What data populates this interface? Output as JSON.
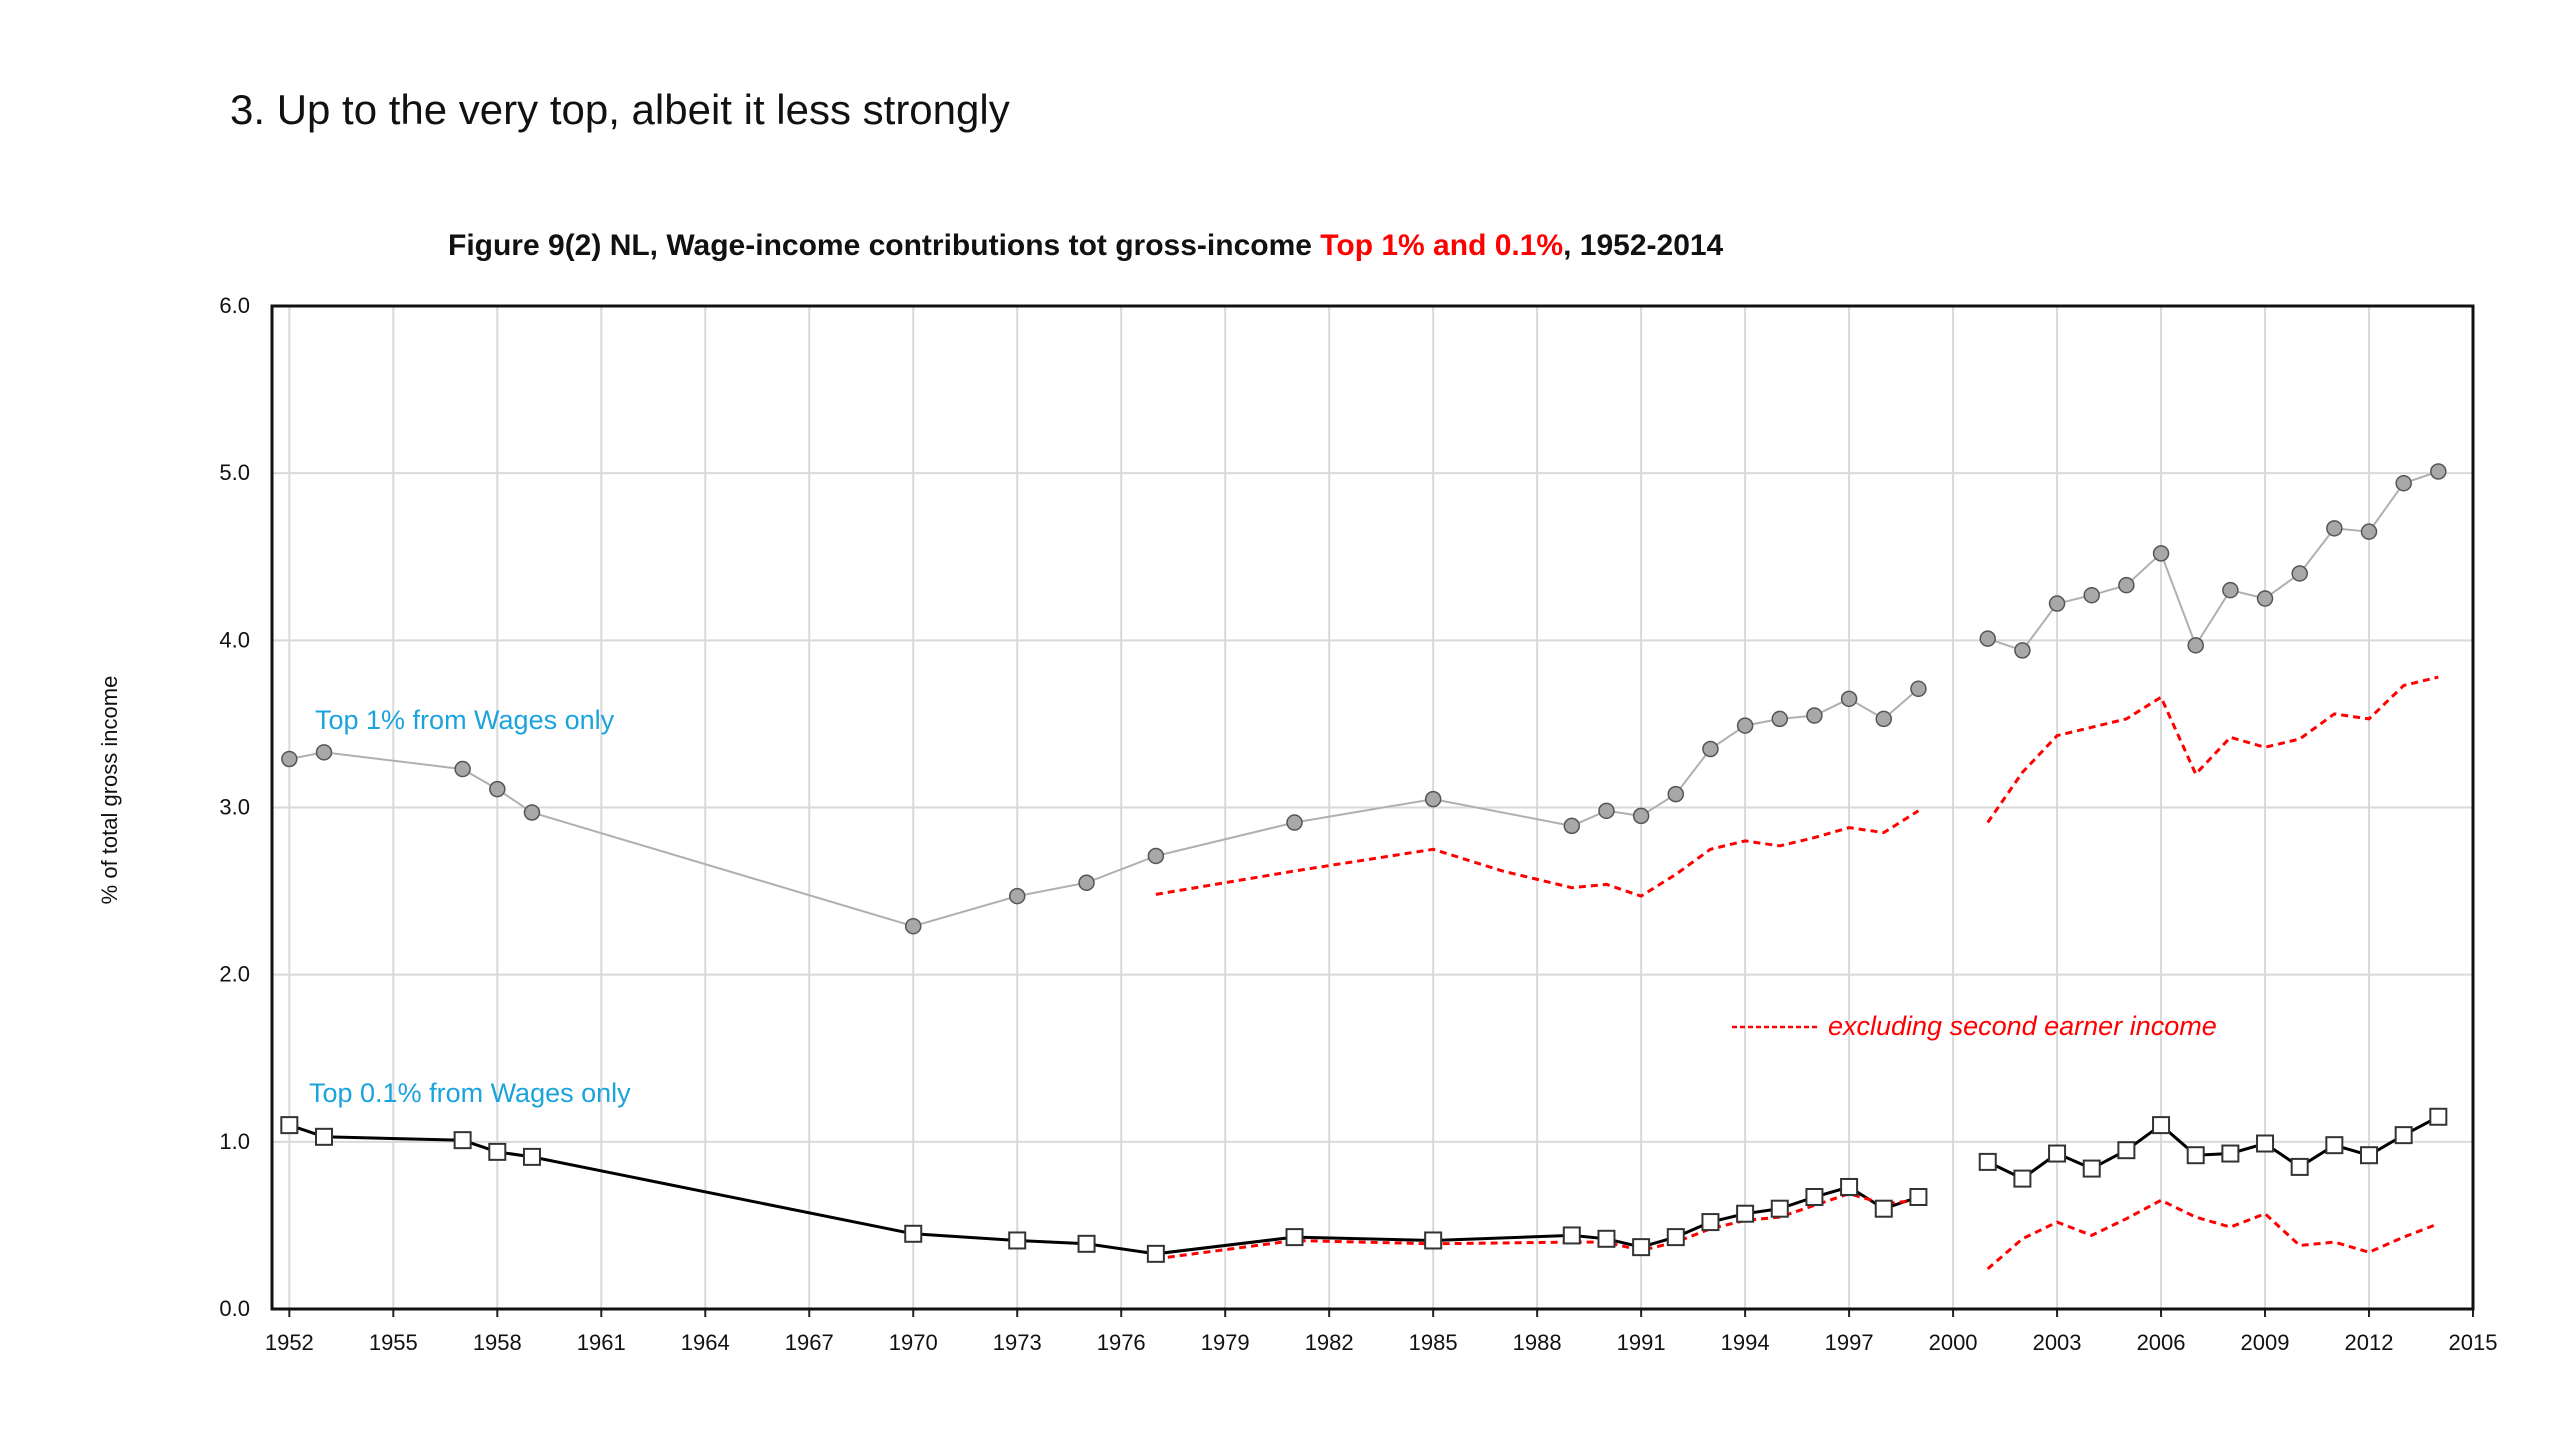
{
  "heading": "3. Up to the very top, albeit it less strongly",
  "figure_title": {
    "prefix": "Figure 9(2)  NL, Wage-income contributions tot gross-income ",
    "highlight": "Top 1% and 0.1%",
    "suffix": ", 1952-2014"
  },
  "colors": {
    "top1_line": "#b0b0b0",
    "top1_marker": "#a8a8a8",
    "top01_line": "#000000",
    "excluding_line": "#ff0000",
    "label_blue": "#1aa3dd",
    "grid": "#d9d9d9"
  },
  "chart_data": {
    "type": "line",
    "ylabel": "% of total gross income",
    "xlabel": "",
    "ylim": [
      0.0,
      6.0
    ],
    "xlim": [
      1951.5,
      2015
    ],
    "yticks": [
      "0.0",
      "1.0",
      "2.0",
      "3.0",
      "4.0",
      "5.0",
      "6.0"
    ],
    "xticks": [
      "1952",
      "1955",
      "1958",
      "1961",
      "1964",
      "1967",
      "1970",
      "1973",
      "1976",
      "1979",
      "1982",
      "1985",
      "1988",
      "1991",
      "1994",
      "1997",
      "2000",
      "2003",
      "2006",
      "2009",
      "2012",
      "2015"
    ],
    "grid": true,
    "annotations": {
      "top1": "Top 1% from Wages only",
      "top01": "Top 0.1% from Wages only",
      "legend_excluding": "excluding second earner income"
    },
    "series": [
      {
        "name": "Top 1% from Wages only",
        "marker": "circle",
        "segments": [
          [
            [
              1952,
              3.29
            ],
            [
              1953,
              3.33
            ],
            [
              1957,
              3.23
            ],
            [
              1958,
              3.11
            ],
            [
              1959,
              2.97
            ],
            [
              1970,
              2.29
            ],
            [
              1973,
              2.47
            ],
            [
              1975,
              2.55
            ],
            [
              1977,
              2.71
            ],
            [
              1981,
              2.91
            ],
            [
              1985,
              3.05
            ],
            [
              1989,
              2.89
            ],
            [
              1990,
              2.98
            ],
            [
              1991,
              2.95
            ],
            [
              1992,
              3.08
            ],
            [
              1993,
              3.35
            ],
            [
              1994,
              3.49
            ],
            [
              1995,
              3.53
            ],
            [
              1996,
              3.55
            ],
            [
              1997,
              3.65
            ],
            [
              1998,
              3.53
            ],
            [
              1999,
              3.71
            ]
          ],
          [
            [
              2001,
              4.01
            ],
            [
              2002,
              3.94
            ],
            [
              2003,
              4.22
            ],
            [
              2004,
              4.27
            ],
            [
              2005,
              4.33
            ],
            [
              2006,
              4.52
            ],
            [
              2007,
              3.97
            ],
            [
              2008,
              4.3
            ],
            [
              2009,
              4.25
            ],
            [
              2010,
              4.4
            ],
            [
              2011,
              4.67
            ],
            [
              2012,
              4.65
            ],
            [
              2013,
              4.94
            ],
            [
              2014,
              5.01
            ]
          ]
        ]
      },
      {
        "name": "Top 0.1% from Wages only",
        "marker": "square",
        "segments": [
          [
            [
              1952,
              1.1
            ],
            [
              1953,
              1.03
            ],
            [
              1957,
              1.01
            ],
            [
              1958,
              0.94
            ],
            [
              1959,
              0.91
            ],
            [
              1970,
              0.45
            ],
            [
              1973,
              0.41
            ],
            [
              1975,
              0.39
            ],
            [
              1977,
              0.33
            ],
            [
              1981,
              0.43
            ],
            [
              1985,
              0.41
            ],
            [
              1989,
              0.44
            ],
            [
              1990,
              0.42
            ],
            [
              1991,
              0.37
            ],
            [
              1992,
              0.43
            ],
            [
              1993,
              0.52
            ],
            [
              1994,
              0.57
            ],
            [
              1995,
              0.6
            ],
            [
              1996,
              0.67
            ],
            [
              1997,
              0.73
            ],
            [
              1998,
              0.6
            ],
            [
              1999,
              0.67
            ]
          ],
          [
            [
              2001,
              0.88
            ],
            [
              2002,
              0.78
            ],
            [
              2003,
              0.93
            ],
            [
              2004,
              0.84
            ],
            [
              2005,
              0.95
            ],
            [
              2006,
              1.1
            ],
            [
              2007,
              0.92
            ],
            [
              2008,
              0.93
            ],
            [
              2009,
              0.99
            ],
            [
              2010,
              0.85
            ],
            [
              2011,
              0.98
            ],
            [
              2012,
              0.92
            ],
            [
              2013,
              1.04
            ],
            [
              2014,
              1.15
            ]
          ]
        ]
      },
      {
        "name": "Top 1% excluding second earner income",
        "marker": "none",
        "dashed": true,
        "segments": [
          [
            [
              1977,
              2.48
            ],
            [
              1981,
              2.62
            ],
            [
              1985,
              2.75
            ],
            [
              1987,
              2.62
            ],
            [
              1989,
              2.52
            ],
            [
              1990,
              2.54
            ],
            [
              1991,
              2.47
            ],
            [
              1992,
              2.6
            ],
            [
              1993,
              2.75
            ],
            [
              1994,
              2.8
            ],
            [
              1995,
              2.77
            ],
            [
              1996,
              2.82
            ],
            [
              1997,
              2.88
            ],
            [
              1998,
              2.85
            ],
            [
              1999,
              2.98
            ]
          ],
          [
            [
              2001,
              2.91
            ],
            [
              2002,
              3.21
            ],
            [
              2003,
              3.43
            ],
            [
              2004,
              3.48
            ],
            [
              2005,
              3.53
            ],
            [
              2006,
              3.66
            ],
            [
              2007,
              3.2
            ],
            [
              2008,
              3.42
            ],
            [
              2009,
              3.36
            ],
            [
              2010,
              3.41
            ],
            [
              2011,
              3.56
            ],
            [
              2012,
              3.53
            ],
            [
              2013,
              3.73
            ],
            [
              2014,
              3.78
            ]
          ]
        ]
      },
      {
        "name": "Top 0.1% excluding second earner income",
        "marker": "none",
        "dashed": true,
        "segments": [
          [
            [
              1977,
              0.3
            ],
            [
              1981,
              0.41
            ],
            [
              1985,
              0.39
            ],
            [
              1989,
              0.4
            ],
            [
              1990,
              0.4
            ],
            [
              1991,
              0.35
            ],
            [
              1992,
              0.4
            ],
            [
              1993,
              0.48
            ],
            [
              1994,
              0.53
            ],
            [
              1995,
              0.55
            ],
            [
              1996,
              0.62
            ],
            [
              1997,
              0.69
            ],
            [
              1998,
              0.63
            ],
            [
              1999,
              0.65
            ]
          ],
          [
            [
              2001,
              0.24
            ],
            [
              2002,
              0.42
            ],
            [
              2003,
              0.52
            ],
            [
              2004,
              0.44
            ],
            [
              2005,
              0.54
            ],
            [
              2006,
              0.65
            ],
            [
              2007,
              0.55
            ],
            [
              2008,
              0.49
            ],
            [
              2009,
              0.57
            ],
            [
              2010,
              0.38
            ],
            [
              2011,
              0.4
            ],
            [
              2012,
              0.34
            ],
            [
              2013,
              0.43
            ],
            [
              2014,
              0.51
            ]
          ]
        ]
      }
    ]
  }
}
